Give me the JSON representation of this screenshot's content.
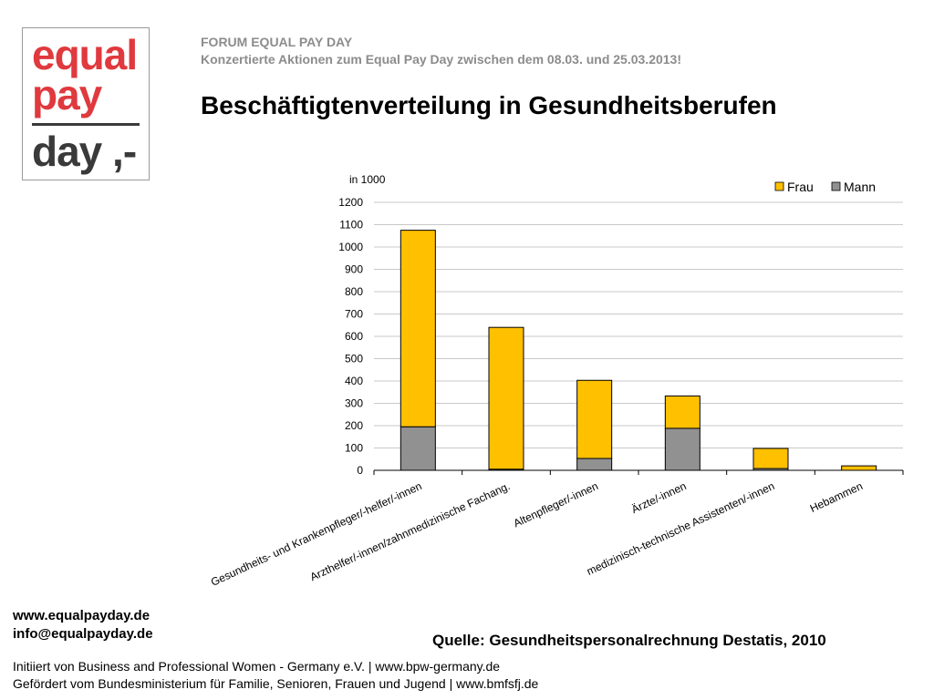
{
  "logo": {
    "line1": "equal",
    "line2": "pay",
    "line3": "day ,-"
  },
  "header": {
    "org": "FORUM EQUAL PAY DAY",
    "subtitle": "Konzertierte Aktionen zum Equal Pay Day zwischen dem 08.03. und 25.03.2013!",
    "title": "Beschäftigtenverteilung in Gesundheitsberufen"
  },
  "colors": {
    "frau": "#ffc000",
    "mann": "#919191",
    "grid": "#c8c8c8",
    "border": "#000000"
  },
  "chart_data": {
    "type": "bar",
    "stacked": true,
    "unit_label": "in 1000",
    "categories": [
      "Gesundheits- und Krankenpfleger/-helfer/-innen",
      "Arzthelfer/-innen/zahnmedizinische Fachang.",
      "Altenpfleger/-innen",
      "Ärzte/-innen",
      "medizinisch-technische Assistenten/-innen",
      "Hebammen"
    ],
    "series": [
      {
        "name": "Mann",
        "values": [
          195,
          5,
          53,
          188,
          8,
          0
        ]
      },
      {
        "name": "Frau",
        "values": [
          880,
          635,
          350,
          145,
          90,
          20
        ]
      }
    ],
    "ylim": [
      0,
      1200
    ],
    "yticks": [
      0,
      100,
      200,
      300,
      400,
      500,
      600,
      700,
      800,
      900,
      1000,
      1100,
      1200
    ],
    "legend": [
      "Frau",
      "Mann"
    ],
    "legend_position": "top-right",
    "grid": true
  },
  "footer": {
    "web": "www.equalpayday.de",
    "email": "info@equalpayday.de",
    "source": "Quelle: Gesundheitspersonalrechnung Destatis, 2010",
    "line1": "Initiiert von Business and Professional Women - Germany e.V. |  www.bpw-germany.de",
    "line2": "Gefördert vom Bundesministerium für Familie, Senioren, Frauen und Jugend  |  www.bmfsfj.de"
  }
}
